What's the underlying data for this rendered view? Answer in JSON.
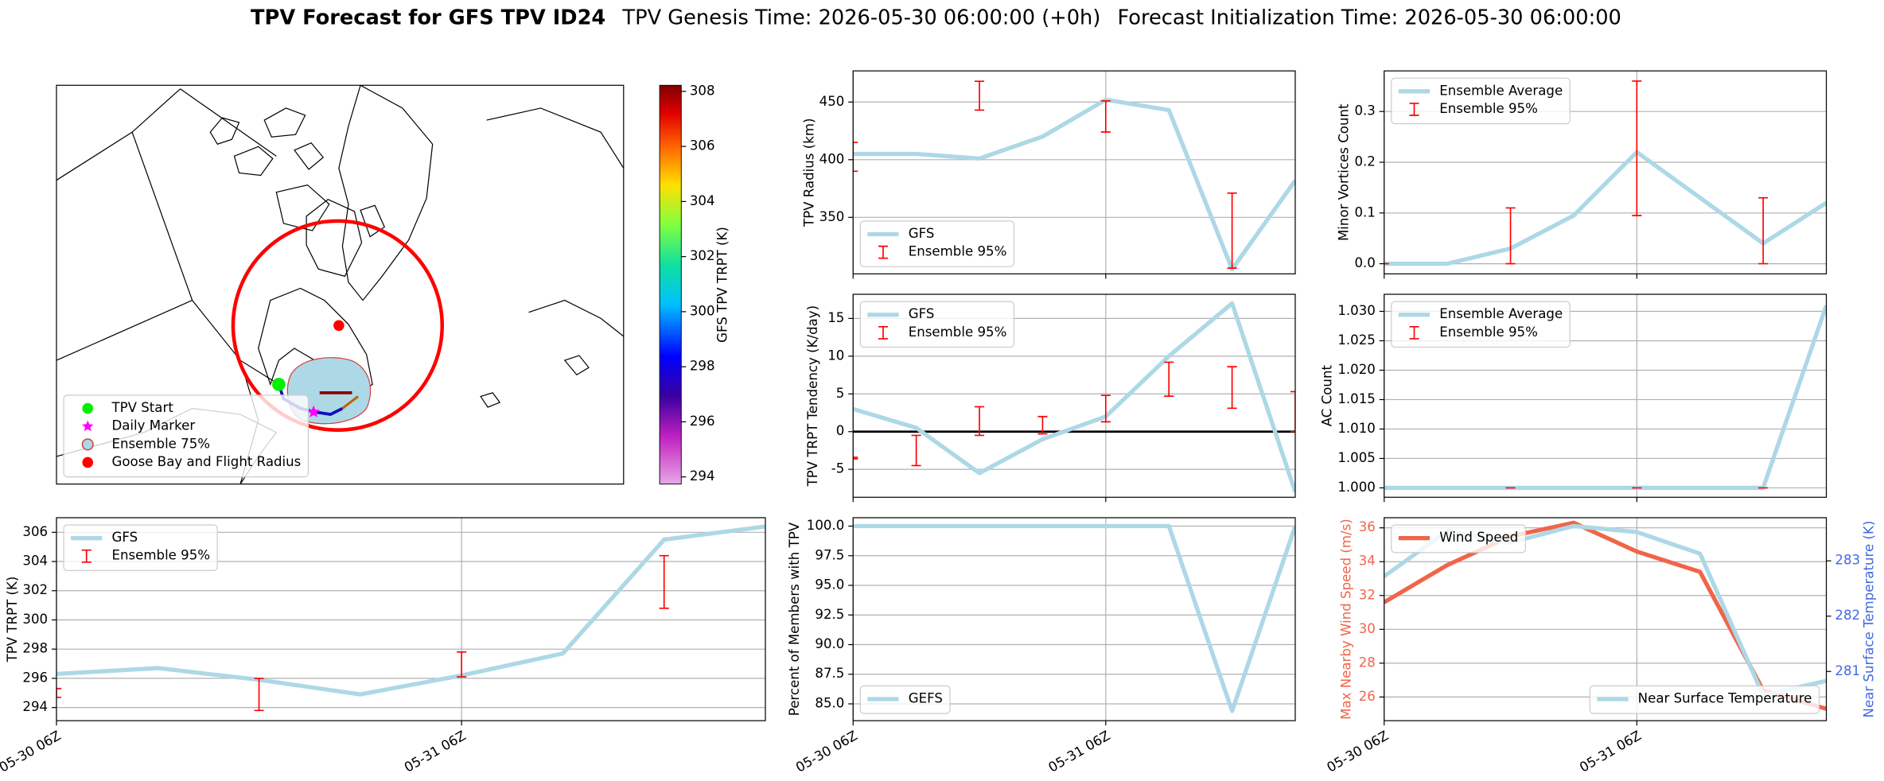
{
  "suptitle": {
    "name": "TPV Forecast for GFS TPV ID24",
    "genesis": "TPV Genesis Time: 2026-05-30 06:00:00 (+0h)",
    "init": "Forecast Initialization Time: 2026-05-30 06:00:00"
  },
  "chart_data": [
    {
      "type": "map",
      "legend": "lower left",
      "legend_entries": [
        {
          "name": "TPV Start",
          "color": "#00ee00",
          "marker": "circle"
        },
        {
          "name": "Daily Marker",
          "color": "#ff00ff",
          "marker": "star"
        },
        {
          "name": "Ensemble 75%",
          "color": "#add8e6",
          "edgecolor": "#d04040",
          "marker": "circle"
        },
        {
          "name": "Goose Bay and Flight Radius",
          "color": "#ff0000",
          "marker": "circle"
        }
      ],
      "colorbar": {
        "label": "GFS TPV TRPT (K)",
        "clim": [
          293.74,
          308.22
        ],
        "ticks": [
          294,
          296,
          298,
          300,
          302,
          304,
          306,
          308
        ]
      }
    },
    {
      "type": "line",
      "ylabel": "TPV Radius (km)",
      "categories": [
        null,
        null,
        null,
        null,
        null,
        null,
        null,
        null
      ],
      "series": [
        {
          "name": "GFS",
          "color": "#add8e6",
          "values": [
            405,
            405,
            401,
            420,
            452,
            443,
            305,
            382
          ]
        }
      ],
      "ensemble": {
        "name": "Ensemble 95%",
        "color": "#ff0000",
        "low": [
          390,
          null,
          443,
          null,
          424,
          null,
          306,
          null
        ],
        "high": [
          415,
          null,
          468,
          null,
          451,
          null,
          371,
          null
        ]
      },
      "ylim": [
        301,
        477
      ],
      "yticks": [
        350,
        400,
        450
      ],
      "grid": true,
      "legend": "lower left"
    },
    {
      "type": "line",
      "ylabel": "Minor Vortices Count",
      "categories": [
        null,
        null,
        null,
        null,
        null,
        null,
        null,
        null
      ],
      "series": [
        {
          "name": "Ensemble Average",
          "color": "#add8e6",
          "values": [
            0,
            0,
            0.03,
            0.095,
            0.22,
            0.13,
            0.04,
            0.12
          ]
        }
      ],
      "ensemble": {
        "name": "Ensemble 95%",
        "color": "#ff0000",
        "low": [
          0,
          null,
          0,
          null,
          0.095,
          null,
          0,
          null
        ],
        "high": [
          0,
          null,
          0.11,
          null,
          0.36,
          null,
          0.13,
          null
        ]
      },
      "ylim": [
        -0.02,
        0.38
      ],
      "yticks": [
        {
          "value": 0,
          "label": "0.0"
        },
        0.1,
        0.2,
        0.3
      ],
      "grid": true,
      "legend": "upper left"
    },
    {
      "type": "line",
      "ylabel": "TPV TRPT Tendency (K/day)",
      "categories": [
        null,
        null,
        null,
        null,
        null,
        null,
        null,
        null
      ],
      "series": [
        {
          "name": "GFS",
          "color": "#add8e6",
          "values": [
            3,
            0.5,
            -5.5,
            -1,
            2,
            10,
            17,
            -8
          ]
        }
      ],
      "ensemble": {
        "name": "Ensemble 95%",
        "color": "#ff0000",
        "low": [
          -3.6,
          -4.5,
          -0.5,
          -0.3,
          1.3,
          4.7,
          3.1,
          0
        ],
        "high": [
          -3.4,
          -0.5,
          3.3,
          2,
          4.8,
          9.2,
          8.6,
          5.3
        ]
      },
      "hline": 0,
      "ylim": [
        -8.7,
        18.2
      ],
      "yticks": [
        -5,
        0,
        5,
        10,
        15
      ],
      "grid": true,
      "legend": "upper left"
    },
    {
      "type": "line",
      "ylabel": "AC Count",
      "categories": [
        null,
        null,
        null,
        null,
        null,
        null,
        null,
        null
      ],
      "series": [
        {
          "name": "Ensemble Average",
          "color": "#add8e6",
          "values": [
            1,
            1,
            1,
            1,
            1,
            1,
            1,
            1.031
          ]
        }
      ],
      "ensemble": {
        "name": "Ensemble 95%",
        "color": "#ff0000",
        "low": [
          null,
          null,
          1,
          null,
          1,
          null,
          1,
          null
        ],
        "high": [
          null,
          null,
          1,
          null,
          1,
          null,
          1,
          null
        ]
      },
      "ylim": [
        0.9984,
        1.0329
      ],
      "yticks": [
        {
          "value": 1,
          "label": "1.000"
        },
        {
          "value": 1.005,
          "label": "1.005"
        },
        {
          "value": 1.01,
          "label": "1.010"
        },
        {
          "value": 1.015,
          "label": "1.015"
        },
        {
          "value": 1.02,
          "label": "1.020"
        },
        {
          "value": 1.025,
          "label": "1.025"
        },
        {
          "value": 1.03,
          "label": "1.030"
        }
      ],
      "grid": true,
      "legend": "upper left"
    },
    {
      "type": "line",
      "ylabel": "TPV TRPT (K)",
      "categories": [
        "05-30 06Z",
        null,
        null,
        null,
        "05-31 06Z",
        null,
        null,
        null
      ],
      "series": [
        {
          "name": "GFS",
          "color": "#add8e6",
          "values": [
            296.3,
            296.7,
            295.9,
            294.9,
            296.2,
            297.7,
            305.5,
            306.4
          ]
        }
      ],
      "ensemble": {
        "name": "Ensemble 95%",
        "color": "#ff0000",
        "low": [
          294.7,
          null,
          293.8,
          null,
          296.1,
          null,
          300.8,
          null
        ],
        "high": [
          295.3,
          null,
          296.0,
          null,
          297.8,
          null,
          304.4,
          null
        ]
      },
      "ylim": [
        293.1,
        307.0
      ],
      "yticks": [
        294,
        296,
        298,
        300,
        302,
        304,
        306
      ],
      "grid": true,
      "legend": "upper left"
    },
    {
      "type": "line",
      "ylabel": "Percent of Members with TPV",
      "categories": [
        "05-30 06Z",
        null,
        null,
        null,
        "05-31 06Z",
        null,
        null,
        null
      ],
      "series": [
        {
          "name": "GEFS",
          "color": "#add8e6",
          "values": [
            100,
            100,
            100,
            100,
            100,
            100,
            84.4,
            100
          ]
        }
      ],
      "ylim": [
        83.58,
        100.71
      ],
      "yticks": [
        {
          "value": 85,
          "label": "85.0"
        },
        87.5,
        {
          "value": 90,
          "label": "90.0"
        },
        92.5,
        {
          "value": 95,
          "label": "95.0"
        },
        97.5,
        {
          "value": 100,
          "label": "100.0"
        }
      ],
      "grid": true,
      "legend": "lower left"
    },
    {
      "type": "line",
      "ylabel": "Max Nearby Wind Speed (m/s)",
      "ylabel_color": "#f0654a",
      "y2label": "Near Surface Temperature (K)",
      "y2label_color": "#4169e1",
      "categories": [
        "05-30 06Z",
        null,
        null,
        null,
        "05-31 06Z",
        null,
        null,
        null
      ],
      "series": [
        {
          "name": "Wind Speed",
          "color": "#f0654a",
          "values": [
            31.6,
            33.8,
            35.5,
            36.3,
            34.6,
            33.4,
            26.4,
            25.3
          ]
        },
        {
          "name": "Near Surface Temperature",
          "color": "#add8e6",
          "axis": "y2",
          "values": [
            282.72,
            283.54,
            283.33,
            283.63,
            283.52,
            283.13,
            280.57,
            280.83
          ]
        }
      ],
      "ylim": [
        24.6,
        36.6
      ],
      "yticks": [
        26,
        28,
        30,
        32,
        34,
        36
      ],
      "y2lim": [
        280.11,
        283.78
      ],
      "y2ticks": [
        281,
        282,
        283
      ],
      "grid": true,
      "legend": "upper left",
      "y2legend": "lower right"
    }
  ]
}
